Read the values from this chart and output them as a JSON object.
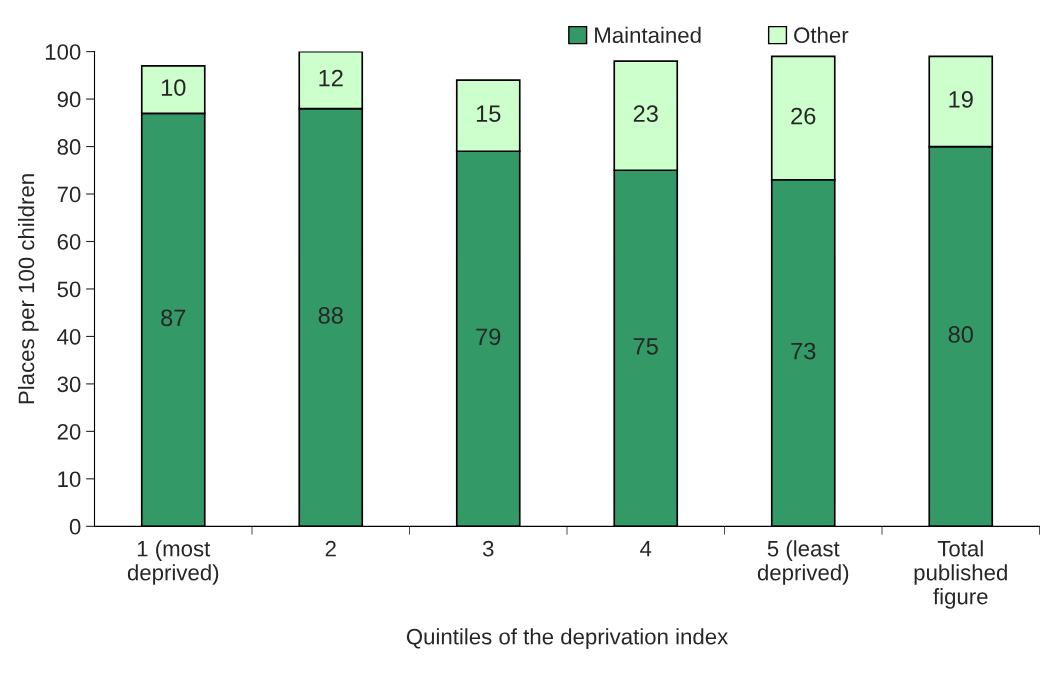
{
  "chart_data": {
    "type": "bar",
    "stacked": true,
    "xlabel": "Quintiles of the deprivation index",
    "ylabel": "Places per 100 children",
    "categories": [
      "1 (most\ndeprived)",
      "2",
      "3",
      "4",
      "5 (least\ndeprived)",
      "Total\npublished\nfigure"
    ],
    "series": [
      {
        "name": "Maintained",
        "color": "#339966",
        "values": [
          87,
          88,
          79,
          75,
          73,
          80
        ]
      },
      {
        "name": "Other",
        "color": "#ccffcc",
        "values": [
          10,
          12,
          15,
          23,
          26,
          19
        ]
      }
    ],
    "ylim": [
      0,
      100
    ],
    "yticks": [
      0,
      10,
      20,
      30,
      40,
      50,
      60,
      70,
      80,
      90,
      100
    ],
    "data_labels": true,
    "legend": "top",
    "grid": false
  }
}
